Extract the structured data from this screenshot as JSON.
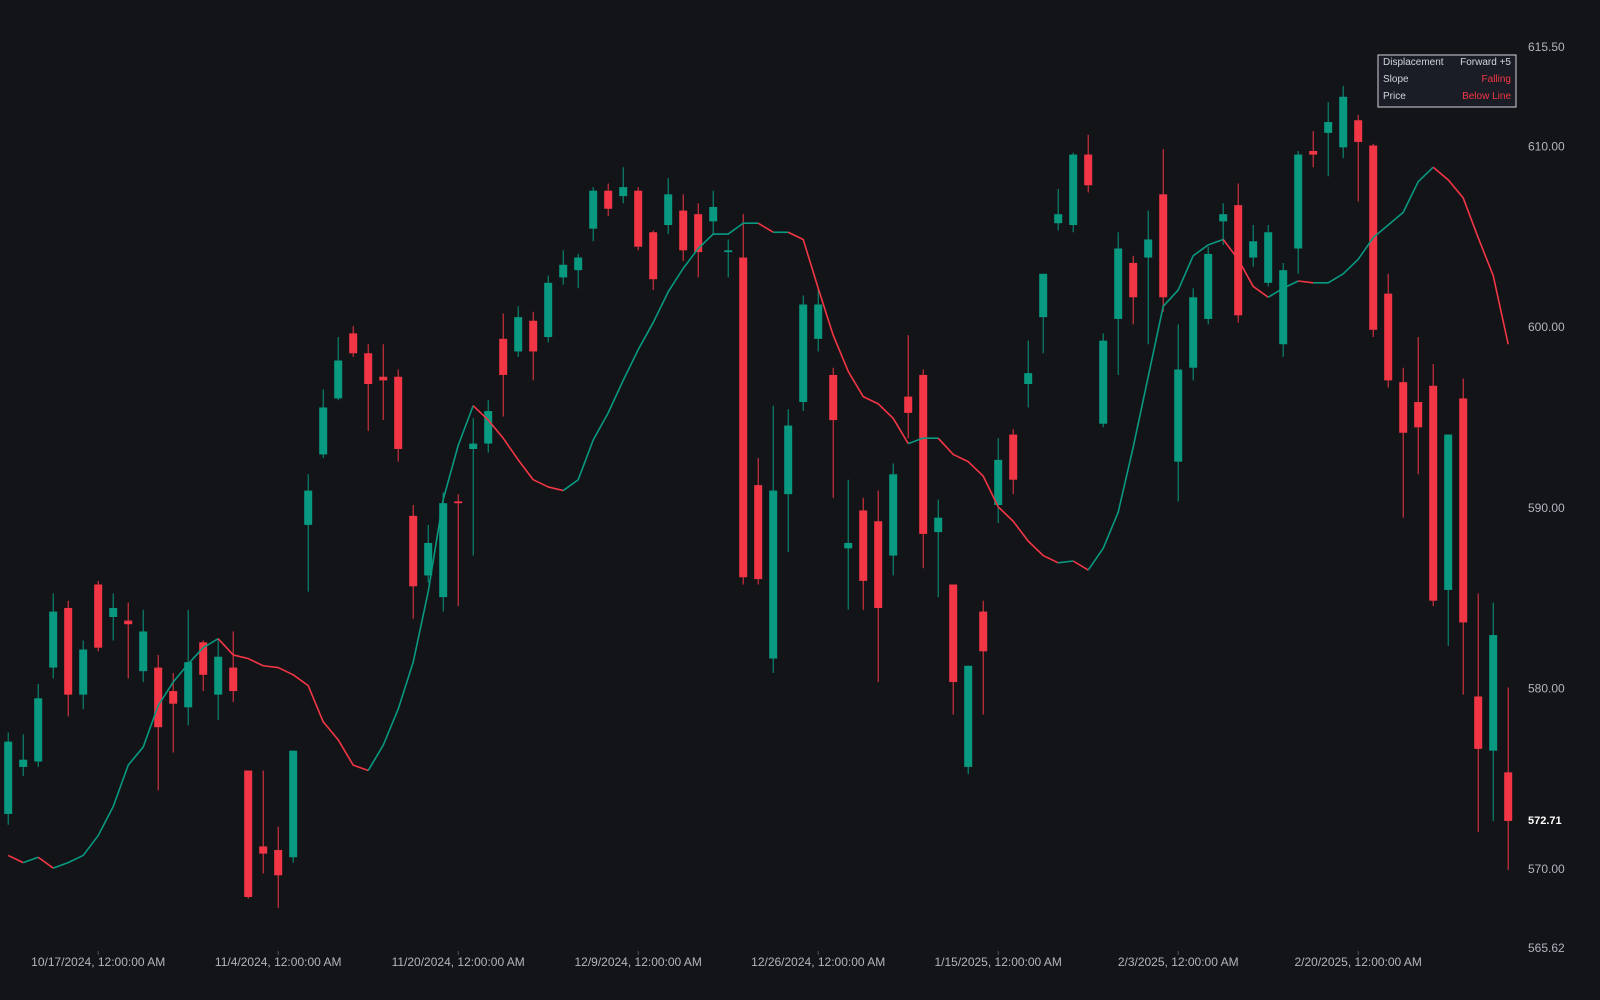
{
  "chart_data": {
    "type": "candlestick",
    "categories": [
      null,
      null,
      null,
      null,
      null,
      null,
      "10/17/2024, 12:00:00 AM",
      null,
      null,
      null,
      null,
      null,
      null,
      null,
      null,
      null,
      null,
      null,
      "11/4/2024, 12:00:00 AM",
      null,
      null,
      null,
      null,
      null,
      null,
      null,
      null,
      null,
      null,
      null,
      "11/20/2024, 12:00:00 AM",
      null,
      null,
      null,
      null,
      null,
      null,
      null,
      null,
      null,
      null,
      null,
      "12/9/2024, 12:00:00 AM",
      null,
      null,
      null,
      null,
      null,
      null,
      null,
      null,
      null,
      null,
      null,
      "12/26/2024, 12:00:00 AM",
      null,
      null,
      null,
      null,
      null,
      null,
      null,
      null,
      null,
      null,
      null,
      "1/15/2025, 12:00:00 AM",
      null,
      null,
      null,
      null,
      null,
      null,
      null,
      null,
      null,
      null,
      null,
      "2/3/2025, 12:00:00 AM",
      null,
      null,
      null,
      null,
      null,
      null,
      null,
      null,
      null,
      null,
      null,
      "2/20/2025, 12:00:00 AM",
      null,
      null,
      null,
      null,
      null,
      null,
      null,
      null,
      null,
      null
    ],
    "open": [
      573.1,
      575.7,
      576.0,
      581.2,
      584.5,
      579.7,
      585.8,
      584.0,
      583.8,
      581.0,
      581.2,
      579.9,
      579.0,
      582.6,
      579.7,
      581.2,
      575.5,
      571.3,
      571.1,
      570.7,
      589.1,
      593.0,
      596.1,
      599.7,
      598.6,
      597.3,
      597.3,
      589.6,
      586.3,
      585.1,
      590.4,
      593.3,
      593.6,
      599.4,
      598.7,
      600.4,
      599.5,
      602.8,
      603.2,
      605.5,
      607.6,
      607.3,
      607.6,
      605.3,
      605.7,
      606.5,
      606.3,
      605.9,
      604.2,
      603.9,
      591.3,
      581.7,
      590.8,
      595.9,
      599.4,
      597.4,
      587.8,
      589.9,
      589.3,
      587.4,
      596.2,
      597.4,
      588.7,
      585.8,
      575.7,
      584.3,
      590.2,
      594.1,
      596.9,
      600.6,
      605.8,
      605.7,
      609.6,
      594.7,
      600.5,
      603.6,
      603.9,
      607.4,
      592.6,
      597.8,
      600.5,
      605.9,
      606.8,
      603.9,
      602.5,
      599.1,
      604.4,
      609.8,
      610.8,
      610.0,
      611.5,
      610.1,
      601.9,
      597.0,
      595.9,
      596.8,
      585.5,
      596.1,
      579.6,
      576.6,
      575.4
    ],
    "high": [
      577.6,
      577.5,
      580.3,
      585.3,
      584.9,
      582.7,
      586.0,
      585.3,
      584.8,
      584.4,
      581.9,
      580.9,
      584.4,
      582.7,
      582.7,
      583.2,
      575.5,
      575.5,
      572.4,
      576.6,
      591.9,
      596.6,
      599.5,
      600.1,
      599.1,
      599.1,
      597.7,
      590.2,
      589.1,
      590.9,
      590.8,
      595.0,
      596.0,
      600.8,
      601.2,
      600.9,
      602.9,
      604.3,
      604.1,
      607.8,
      608.0,
      608.9,
      607.8,
      605.4,
      608.3,
      607.4,
      606.9,
      607.6,
      604.9,
      606.3,
      592.8,
      595.7,
      595.5,
      601.8,
      602.2,
      597.8,
      591.6,
      590.6,
      591.0,
      592.5,
      599.6,
      597.7,
      590.5,
      585.8,
      581.3,
      584.9,
      593.9,
      594.4,
      599.3,
      603.0,
      607.7,
      609.7,
      610.7,
      599.7,
      605.3,
      604.0,
      606.5,
      609.9,
      600.2,
      602.2,
      604.5,
      606.9,
      608.0,
      605.7,
      605.7,
      603.6,
      609.8,
      610.9,
      612.5,
      613.4,
      611.8,
      610.2,
      603.0,
      597.8,
      599.5,
      598.0,
      594.1,
      597.2,
      585.3,
      584.8,
      580.1
    ],
    "low": [
      572.5,
      575.2,
      575.7,
      580.6,
      578.5,
      578.9,
      582.1,
      582.7,
      580.6,
      580.4,
      574.4,
      576.5,
      578.0,
      579.9,
      578.3,
      579.3,
      568.4,
      569.8,
      567.9,
      570.4,
      585.4,
      592.8,
      596.0,
      598.4,
      594.3,
      594.9,
      592.6,
      583.9,
      585.9,
      584.3,
      584.6,
      587.4,
      593.1,
      595.1,
      598.4,
      597.1,
      599.2,
      602.4,
      602.2,
      604.8,
      606.2,
      606.9,
      604.3,
      602.1,
      605.2,
      603.7,
      602.8,
      605.2,
      602.8,
      585.8,
      585.8,
      580.9,
      587.6,
      595.4,
      598.7,
      590.6,
      584.4,
      584.4,
      580.4,
      586.3,
      593.9,
      586.7,
      585.1,
      578.6,
      575.3,
      578.6,
      589.2,
      590.8,
      595.6,
      598.6,
      605.4,
      605.3,
      607.5,
      594.5,
      597.4,
      600.2,
      599.1,
      600.9,
      590.4,
      597.1,
      600.2,
      604.6,
      600.3,
      603.4,
      602.3,
      598.4,
      603.0,
      608.9,
      608.4,
      609.4,
      607.0,
      599.5,
      596.7,
      589.5,
      591.9,
      584.6,
      582.4,
      579.7,
      572.1,
      572.7,
      570.0
    ],
    "close": [
      577.1,
      576.1,
      579.5,
      584.3,
      579.7,
      582.2,
      582.3,
      584.5,
      583.6,
      583.2,
      577.9,
      579.2,
      581.5,
      580.8,
      581.8,
      579.9,
      568.5,
      570.9,
      569.7,
      576.6,
      591.0,
      595.6,
      598.2,
      598.6,
      596.9,
      597.1,
      593.3,
      585.7,
      588.1,
      590.3,
      590.3,
      593.6,
      595.4,
      597.4,
      600.6,
      598.7,
      602.5,
      603.5,
      603.9,
      607.6,
      606.6,
      607.8,
      604.5,
      602.7,
      607.4,
      604.3,
      604.2,
      606.7,
      604.3,
      586.2,
      586.1,
      591.0,
      594.6,
      601.3,
      601.3,
      594.9,
      588.1,
      586.0,
      584.5,
      591.9,
      595.3,
      588.6,
      589.5,
      580.4,
      581.3,
      582.1,
      592.7,
      591.6,
      597.5,
      603.0,
      606.3,
      609.6,
      607.9,
      599.3,
      604.4,
      601.7,
      604.9,
      601.7,
      597.7,
      601.7,
      604.1,
      606.3,
      600.7,
      604.8,
      605.3,
      603.2,
      609.6,
      609.6,
      611.4,
      612.8,
      610.3,
      599.9,
      597.1,
      594.2,
      594.5,
      584.9,
      594.1,
      583.7,
      576.7,
      583.0,
      572.71
    ],
    "up_color": "#089981",
    "down_color": "#f23645",
    "line": {
      "values": [
        570.8,
        570.4,
        570.7,
        570.1,
        570.4,
        570.8,
        571.9,
        573.5,
        575.8,
        576.8,
        579.1,
        580.4,
        581.4,
        582.3,
        582.8,
        581.9,
        581.7,
        581.3,
        581.2,
        580.8,
        580.2,
        578.2,
        577.2,
        575.8,
        575.5,
        576.9,
        578.9,
        581.5,
        585.4,
        590.5,
        593.5,
        595.7,
        594.9,
        593.9,
        592.7,
        591.6,
        591.2,
        591.0,
        591.6,
        593.8,
        595.3,
        597.1,
        598.8,
        600.3,
        602.0,
        603.3,
        604.4,
        605.2,
        605.2,
        605.8,
        605.8,
        605.3,
        605.3,
        604.9,
        602.2,
        599.6,
        597.6,
        596.2,
        595.8,
        595.0,
        593.6,
        593.9,
        593.9,
        593.0,
        592.6,
        591.8,
        590.1,
        589.3,
        588.2,
        587.4,
        587.0,
        587.1,
        586.6,
        587.8,
        589.8,
        593.4,
        597.3,
        601.2,
        602.1,
        604.0,
        604.6,
        604.9,
        603.8,
        602.3,
        601.7,
        602.2,
        602.6,
        602.5,
        602.5,
        603.0,
        603.8,
        605.0,
        605.7,
        606.4,
        608.1,
        608.9,
        608.2,
        607.2,
        605.0,
        602.9,
        599.1
      ],
      "rising_color": "#089981",
      "falling_color": "#f23645"
    },
    "ylim": [
      565.62,
      615.5
    ],
    "yticks": [
      {
        "value": 565.62,
        "label": "565.62"
      },
      {
        "value": 570,
        "label": "570.00"
      },
      {
        "value": 580,
        "label": "580.00"
      },
      {
        "value": 590,
        "label": "590.00"
      },
      {
        "value": 600,
        "label": "600.00"
      },
      {
        "value": 610,
        "label": "610.00"
      },
      {
        "value": 615.5,
        "label": "615.50"
      }
    ],
    "grid": false,
    "info": [
      {
        "label": "Displacement",
        "value": "Forward +5",
        "color": "#d1d4dc"
      },
      {
        "label": "Slope",
        "value": "Falling",
        "color": "#f23645"
      },
      {
        "label": "Price",
        "value": "Below Line",
        "color": "#f23645"
      }
    ]
  }
}
